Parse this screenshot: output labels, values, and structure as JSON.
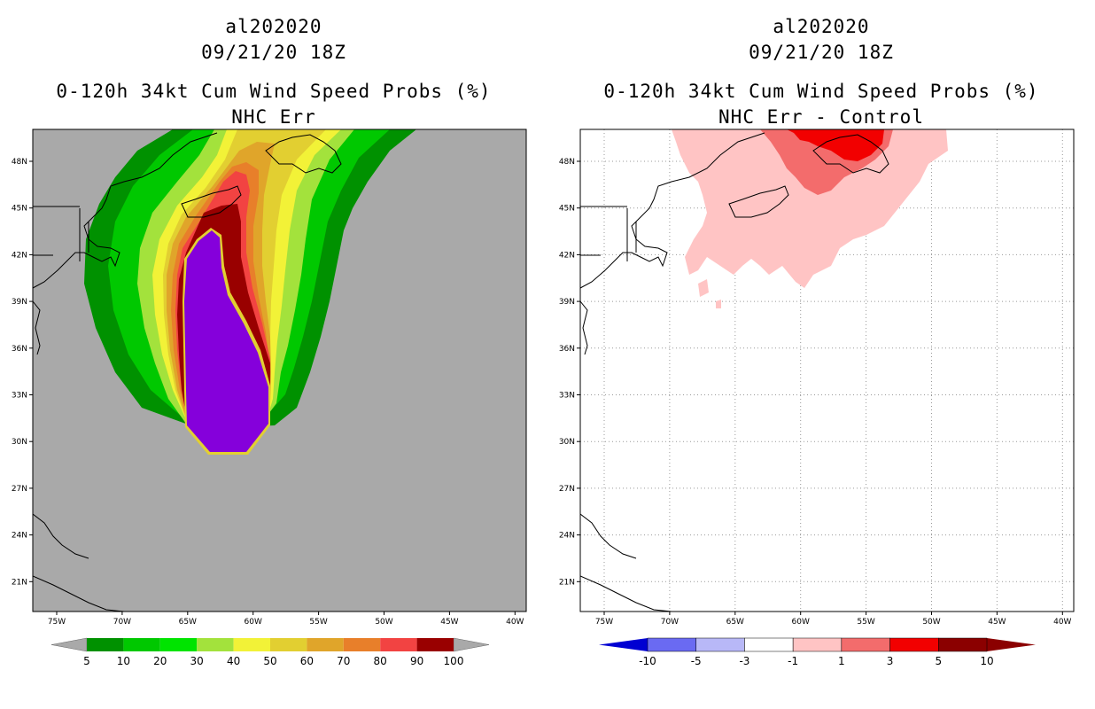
{
  "panels": [
    {
      "id": "nhc-err",
      "storm_id": "al202020",
      "datetime": "09/21/20 18Z",
      "product": "0-120h 34kt Cum Wind Speed Probs (%)",
      "subtitle": "NHC Err",
      "background_color": "#a9a9a9",
      "colorbar": {
        "labels": [
          "5",
          "10",
          "20",
          "30",
          "40",
          "50",
          "60",
          "70",
          "80",
          "90",
          "100"
        ],
        "colors": [
          "#009100",
          "#00c800",
          "#00e400",
          "#a3e23c",
          "#f2f237",
          "#e2cf31",
          "#e0a52a",
          "#e87f2a",
          "#f24342",
          "#990000",
          "#8500db"
        ],
        "arrow_color": "#a9a9a9"
      }
    },
    {
      "id": "nhc-err-control",
      "storm_id": "al202020",
      "datetime": "09/21/20 18Z",
      "product": "0-120h 34kt Cum Wind Speed Probs (%)",
      "subtitle": "NHC Err - Control",
      "background_color": "#ffffff",
      "colorbar": {
        "labels": [
          "-10",
          "-5",
          "-3",
          "-1",
          "1",
          "3",
          "5",
          "10"
        ],
        "colors": [
          "#0000d2",
          "#6a6af2",
          "#b8b8f7",
          "#ffffff",
          "#ffc4c4",
          "#f36c6c",
          "#f20000",
          "#8b0000"
        ]
      }
    }
  ],
  "axes": {
    "lat_labels": [
      "48N",
      "45N",
      "42N",
      "39N",
      "36N",
      "33N",
      "30N",
      "27N",
      "24N",
      "21N"
    ],
    "lon_labels": [
      "75W",
      "70W",
      "65W",
      "60W",
      "55W",
      "50W",
      "45W",
      "40W"
    ]
  }
}
